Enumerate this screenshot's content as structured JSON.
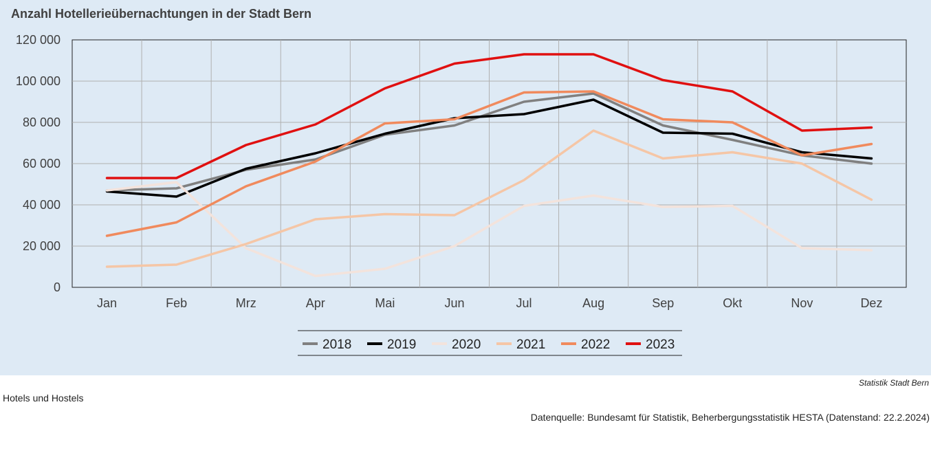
{
  "title": "Anzahl Hotellerieübernachtungen in der Stadt Bern",
  "footer": {
    "source_label": "Statistik Stadt Bern",
    "note": "Hotels und Hostels",
    "dataquelle": "Datenquelle: Bundesamt für Statistik, Beherbergungsstatistik HESTA (Datenstand: 22.2.2024)"
  },
  "chart_data": {
    "type": "line",
    "title": "Anzahl Hotellerieübernachtungen in der Stadt Bern",
    "xlabel": "",
    "ylabel": "",
    "categories": [
      "Jan",
      "Feb",
      "Mrz",
      "Apr",
      "Mai",
      "Jun",
      "Jul",
      "Aug",
      "Sep",
      "Okt",
      "Nov",
      "Dez"
    ],
    "ylim": [
      0,
      120000
    ],
    "yticks": [
      0,
      20000,
      40000,
      60000,
      80000,
      100000,
      120000
    ],
    "ytick_labels": [
      "0",
      "20 000",
      "40 000",
      "60 000",
      "80 000",
      "100 000",
      "120 000"
    ],
    "grid": true,
    "legend_position": "bottom",
    "series": [
      {
        "name": "2018",
        "color": "#808080",
        "values": [
          47000,
          48000,
          57000,
          62000,
          74000,
          78500,
          90000,
          94000,
          78500,
          71500,
          64000,
          60000
        ]
      },
      {
        "name": "2019",
        "color": "#000000",
        "values": [
          46500,
          44000,
          57500,
          65000,
          74500,
          82000,
          84000,
          91000,
          75000,
          74500,
          65500,
          62500
        ]
      },
      {
        "name": "2020",
        "color": "#f3e3dc",
        "values": [
          47000,
          51000,
          19000,
          5500,
          9000,
          20000,
          39500,
          44500,
          39000,
          39500,
          19000,
          18000
        ]
      },
      {
        "name": "2021",
        "color": "#f5c6a6",
        "values": [
          10000,
          11000,
          21000,
          33000,
          35500,
          35000,
          52000,
          76000,
          62500,
          65500,
          60000,
          42500
        ]
      },
      {
        "name": "2022",
        "color": "#f08a5d",
        "values": [
          25000,
          31500,
          49000,
          61000,
          79500,
          81500,
          94500,
          95000,
          81500,
          80000,
          64000,
          69500
        ]
      },
      {
        "name": "2023",
        "color": "#e01010",
        "values": [
          53000,
          53000,
          69000,
          79000,
          96500,
          108500,
          113000,
          113000,
          100500,
          95000,
          76000,
          77500
        ]
      }
    ]
  }
}
